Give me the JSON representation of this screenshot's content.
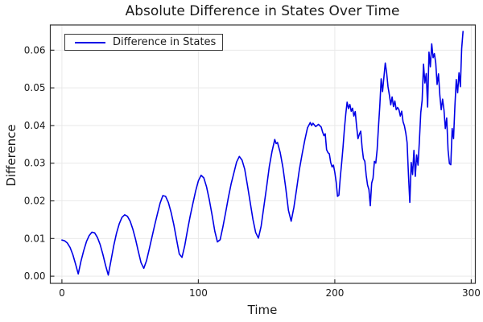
{
  "title": "Absolute Difference in States Over Time",
  "legend": {
    "label": "Difference in States"
  },
  "colors": {
    "line": "#0000e6",
    "grid": "#e9e9e9",
    "frame": "#333333",
    "tick_text": "#1a1a1a",
    "background": "#ffffff"
  },
  "chart_data": {
    "type": "line",
    "title": "Absolute Difference in States Over Time",
    "xlabel": "Time",
    "ylabel": "Difference",
    "legend_position": "top-left",
    "grid": true,
    "xlim": [
      -8.5,
      303
    ],
    "ylim": [
      -0.0019,
      0.0667
    ],
    "xticks": [
      {
        "v": 0,
        "label": "0"
      },
      {
        "v": 100,
        "label": "100"
      },
      {
        "v": 200,
        "label": "200"
      },
      {
        "v": 300,
        "label": "300"
      }
    ],
    "yticks": [
      {
        "v": 0.0,
        "label": "0.00"
      },
      {
        "v": 0.01,
        "label": "0.01"
      },
      {
        "v": 0.02,
        "label": "0.02"
      },
      {
        "v": 0.03,
        "label": "0.03"
      },
      {
        "v": 0.04,
        "label": "0.04"
      },
      {
        "v": 0.05,
        "label": "0.05"
      },
      {
        "v": 0.06,
        "label": "0.06"
      }
    ],
    "series": [
      {
        "name": "Difference in States",
        "color": "#0000e6",
        "points": [
          [
            0,
            0.0096
          ],
          [
            2,
            0.0094
          ],
          [
            4,
            0.0088
          ],
          [
            6,
            0.0076
          ],
          [
            8,
            0.0057
          ],
          [
            10,
            0.0032
          ],
          [
            12,
            0.0006
          ],
          [
            14,
            0.004
          ],
          [
            16,
            0.0068
          ],
          [
            18,
            0.0092
          ],
          [
            20,
            0.0108
          ],
          [
            22,
            0.0117
          ],
          [
            24,
            0.0115
          ],
          [
            26,
            0.0103
          ],
          [
            28,
            0.0084
          ],
          [
            30,
            0.0058
          ],
          [
            32,
            0.0029
          ],
          [
            34,
            0.0003
          ],
          [
            36,
            0.0042
          ],
          [
            38,
            0.0081
          ],
          [
            40,
            0.0114
          ],
          [
            42,
            0.0139
          ],
          [
            44,
            0.0156
          ],
          [
            46,
            0.0163
          ],
          [
            48,
            0.0159
          ],
          [
            50,
            0.0146
          ],
          [
            52,
            0.0125
          ],
          [
            54,
            0.0098
          ],
          [
            56,
            0.0066
          ],
          [
            58,
            0.0036
          ],
          [
            60,
            0.0021
          ],
          [
            62,
            0.0041
          ],
          [
            64,
            0.0072
          ],
          [
            66,
            0.0104
          ],
          [
            68,
            0.0136
          ],
          [
            70,
            0.0166
          ],
          [
            72,
            0.0194
          ],
          [
            74,
            0.0214
          ],
          [
            76,
            0.0212
          ],
          [
            78,
            0.0196
          ],
          [
            80,
            0.017
          ],
          [
            82,
            0.0137
          ],
          [
            84,
            0.0098
          ],
          [
            86,
            0.0059
          ],
          [
            88,
            0.005
          ],
          [
            90,
            0.0081
          ],
          [
            92,
            0.0121
          ],
          [
            94,
            0.0159
          ],
          [
            96,
            0.0193
          ],
          [
            98,
            0.0226
          ],
          [
            100,
            0.0253
          ],
          [
            102,
            0.0268
          ],
          [
            104,
            0.0261
          ],
          [
            106,
            0.0237
          ],
          [
            108,
            0.0203
          ],
          [
            110,
            0.0163
          ],
          [
            112,
            0.012
          ],
          [
            114,
            0.0091
          ],
          [
            116,
            0.0097
          ],
          [
            118,
            0.0131
          ],
          [
            120,
            0.0169
          ],
          [
            122,
            0.0209
          ],
          [
            124,
            0.0245
          ],
          [
            126,
            0.0274
          ],
          [
            128,
            0.0303
          ],
          [
            130,
            0.0318
          ],
          [
            132,
            0.0308
          ],
          [
            134,
            0.0284
          ],
          [
            136,
            0.0241
          ],
          [
            138,
            0.0196
          ],
          [
            140,
            0.0151
          ],
          [
            142,
            0.0116
          ],
          [
            144,
            0.0101
          ],
          [
            146,
            0.0133
          ],
          [
            148,
            0.0185
          ],
          [
            150,
            0.0237
          ],
          [
            152,
            0.0292
          ],
          [
            154,
            0.0331
          ],
          [
            156,
            0.0363
          ],
          [
            157,
            0.0352
          ],
          [
            158,
            0.0355
          ],
          [
            160,
            0.0328
          ],
          [
            162,
            0.0288
          ],
          [
            164,
            0.0235
          ],
          [
            166,
            0.0175
          ],
          [
            168,
            0.0146
          ],
          [
            170,
            0.0183
          ],
          [
            172,
            0.0232
          ],
          [
            174,
            0.0282
          ],
          [
            176,
            0.0323
          ],
          [
            178,
            0.0361
          ],
          [
            180,
            0.0394
          ],
          [
            182,
            0.0408
          ],
          [
            183,
            0.04
          ],
          [
            184,
            0.0406
          ],
          [
            186,
            0.0397
          ],
          [
            188,
            0.0403
          ],
          [
            190,
            0.0396
          ],
          [
            191,
            0.0383
          ],
          [
            192,
            0.0373
          ],
          [
            193,
            0.0378
          ],
          [
            194,
            0.0336
          ],
          [
            195,
            0.0328
          ],
          [
            196,
            0.0325
          ],
          [
            197,
            0.0302
          ],
          [
            198,
            0.029
          ],
          [
            199,
            0.0295
          ],
          [
            200,
            0.0276
          ],
          [
            201,
            0.025
          ],
          [
            202,
            0.0212
          ],
          [
            203,
            0.0215
          ],
          [
            204,
            0.0262
          ],
          [
            205,
            0.03
          ],
          [
            206,
            0.0342
          ],
          [
            207,
            0.039
          ],
          [
            208,
            0.043
          ],
          [
            209,
            0.0462
          ],
          [
            210,
            0.0445
          ],
          [
            211,
            0.0456
          ],
          [
            212,
            0.0438
          ],
          [
            213,
            0.0446
          ],
          [
            214,
            0.0425
          ],
          [
            215,
            0.0437
          ],
          [
            216,
            0.0398
          ],
          [
            217,
            0.0365
          ],
          [
            218,
            0.0377
          ],
          [
            219,
            0.0385
          ],
          [
            220,
            0.0342
          ],
          [
            221,
            0.0312
          ],
          [
            222,
            0.0305
          ],
          [
            223,
            0.0268
          ],
          [
            224,
            0.0242
          ],
          [
            225,
            0.023
          ],
          [
            226,
            0.0187
          ],
          [
            227,
            0.0247
          ],
          [
            228,
            0.026
          ],
          [
            229,
            0.0305
          ],
          [
            230,
            0.03
          ],
          [
            231,
            0.0336
          ],
          [
            232,
            0.0398
          ],
          [
            233,
            0.0452
          ],
          [
            234,
            0.0524
          ],
          [
            235,
            0.049
          ],
          [
            236,
            0.0528
          ],
          [
            237,
            0.0566
          ],
          [
            238,
            0.054
          ],
          [
            239,
            0.0503
          ],
          [
            240,
            0.0481
          ],
          [
            241,
            0.0455
          ],
          [
            242,
            0.0476
          ],
          [
            243,
            0.045
          ],
          [
            244,
            0.0465
          ],
          [
            245,
            0.0442
          ],
          [
            246,
            0.0448
          ],
          [
            247,
            0.0442
          ],
          [
            248,
            0.0425
          ],
          [
            249,
            0.0438
          ],
          [
            250,
            0.041
          ],
          [
            251,
            0.0399
          ],
          [
            252,
            0.038
          ],
          [
            253,
            0.0355
          ],
          [
            254,
            0.027
          ],
          [
            255,
            0.0196
          ],
          [
            256,
            0.0302
          ],
          [
            257,
            0.027
          ],
          [
            258,
            0.0334
          ],
          [
            259,
            0.0265
          ],
          [
            260,
            0.0322
          ],
          [
            261,
            0.0295
          ],
          [
            262,
            0.036
          ],
          [
            263,
            0.0434
          ],
          [
            264,
            0.0467
          ],
          [
            265,
            0.0563
          ],
          [
            266,
            0.0513
          ],
          [
            267,
            0.0538
          ],
          [
            268,
            0.0449
          ],
          [
            269,
            0.0595
          ],
          [
            270,
            0.0556
          ],
          [
            271,
            0.0617
          ],
          [
            272,
            0.058
          ],
          [
            273,
            0.0591
          ],
          [
            274,
            0.0566
          ],
          [
            275,
            0.0509
          ],
          [
            276,
            0.0537
          ],
          [
            277,
            0.048
          ],
          [
            278,
            0.0442
          ],
          [
            279,
            0.047
          ],
          [
            280,
            0.0442
          ],
          [
            281,
            0.0392
          ],
          [
            282,
            0.042
          ],
          [
            283,
            0.0335
          ],
          [
            284,
            0.0299
          ],
          [
            285,
            0.0296
          ],
          [
            286,
            0.0392
          ],
          [
            287,
            0.0365
          ],
          [
            288,
            0.0452
          ],
          [
            289,
            0.0522
          ],
          [
            290,
            0.0487
          ],
          [
            291,
            0.054
          ],
          [
            292,
            0.0503
          ],
          [
            293,
            0.0604
          ],
          [
            294,
            0.065
          ]
        ]
      }
    ]
  }
}
